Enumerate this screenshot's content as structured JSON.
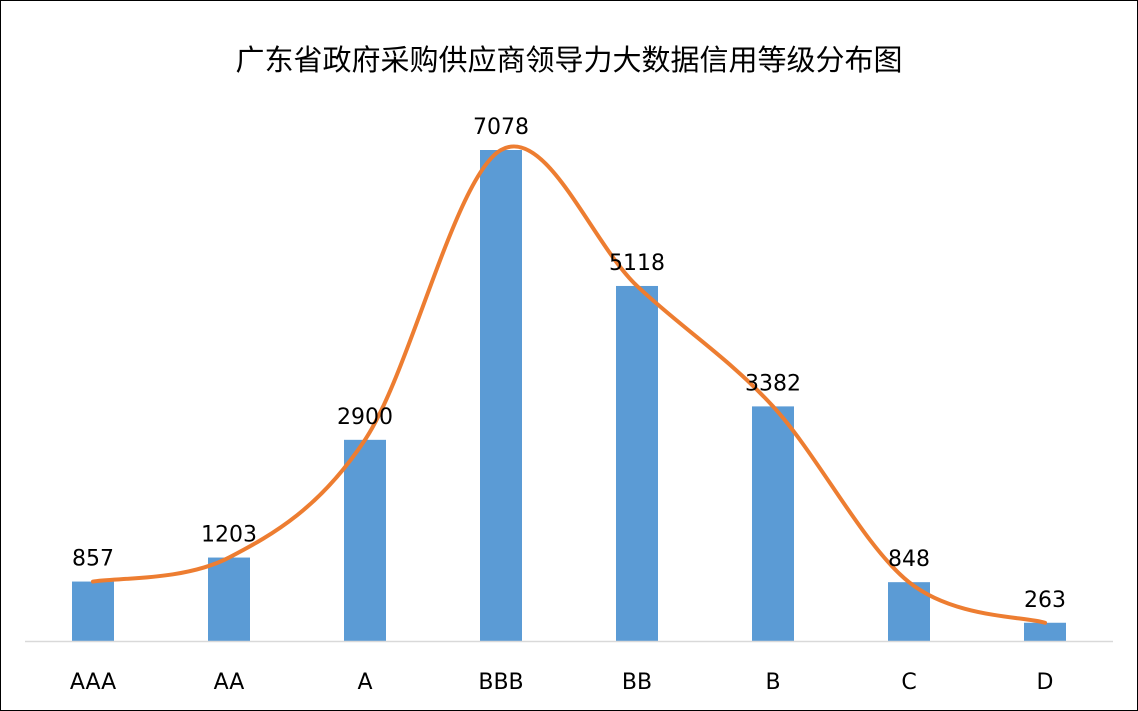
{
  "chart_data": {
    "type": "bar",
    "title": "广东省政府采购供应商领导力大数据信用等级分布图",
    "categories": [
      "AAA",
      "AA",
      "A",
      "BBB",
      "BB",
      "B",
      "C",
      "D"
    ],
    "values": [
      857,
      1203,
      2900,
      7078,
      5118,
      3382,
      848,
      263
    ],
    "series": [
      {
        "values": [
          857,
          1203,
          2900,
          7078,
          5118,
          3382,
          848,
          263
        ],
        "render": "bar"
      },
      {
        "values": [
          857,
          1203,
          2900,
          7078,
          5118,
          3382,
          848,
          263
        ],
        "render": "smooth-line"
      }
    ],
    "ylim": [
      0,
      7078
    ],
    "grid": false,
    "legend": "none",
    "colors": {
      "bar": "#5B9BD5",
      "line": "#ED7D31",
      "axis": "#D9D9D9"
    }
  }
}
